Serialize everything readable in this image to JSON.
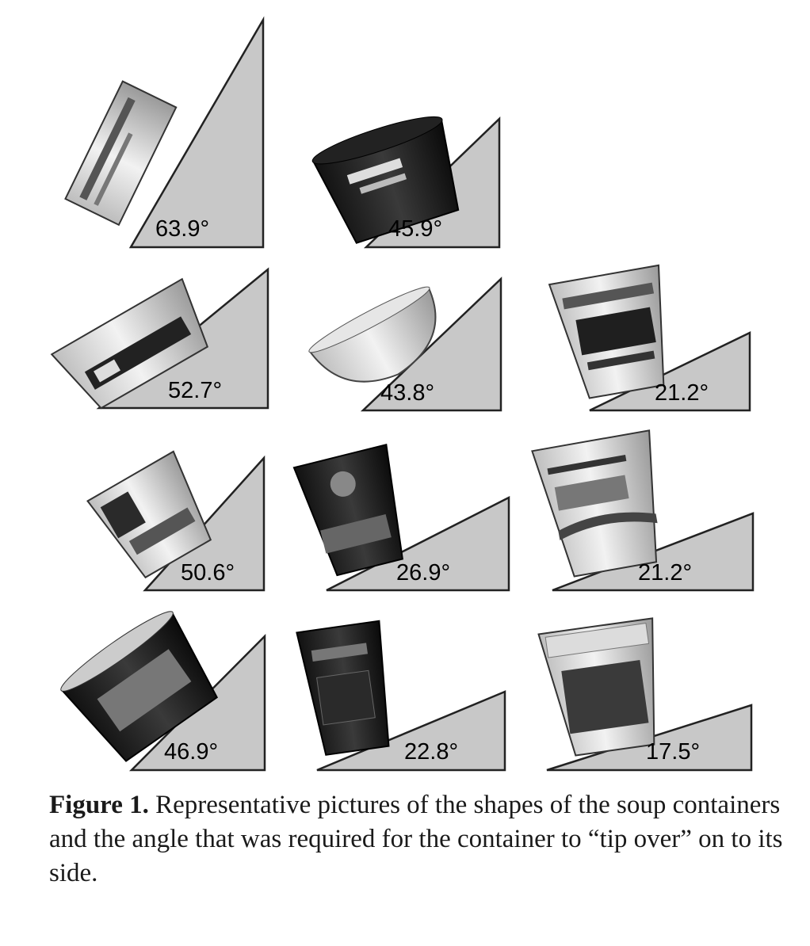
{
  "figure": {
    "panels": [
      {
        "angle": "63.9°",
        "shape": "flat-box"
      },
      {
        "angle": "45.9°",
        "shape": "dark-bowl"
      },
      {
        "angle": "52.7°",
        "shape": "wide-bowl"
      },
      {
        "angle": "43.8°",
        "shape": "white-bowl"
      },
      {
        "angle": "21.2°",
        "shape": "tall-cup"
      },
      {
        "angle": "50.6°",
        "shape": "medium-cup"
      },
      {
        "angle": "26.9°",
        "shape": "dark-cup"
      },
      {
        "angle": "21.2°",
        "shape": "white-cup"
      },
      {
        "angle": "46.9°",
        "shape": "round-bowl"
      },
      {
        "angle": "22.8°",
        "shape": "dark-tall-cup"
      },
      {
        "angle": "17.5°",
        "shape": "noodle-cup"
      }
    ]
  },
  "caption": {
    "label": "Figure 1.",
    "text": " Representative pictures of the shapes of the soup containers and the angle that was required for the container to “tip over” on to its side."
  }
}
